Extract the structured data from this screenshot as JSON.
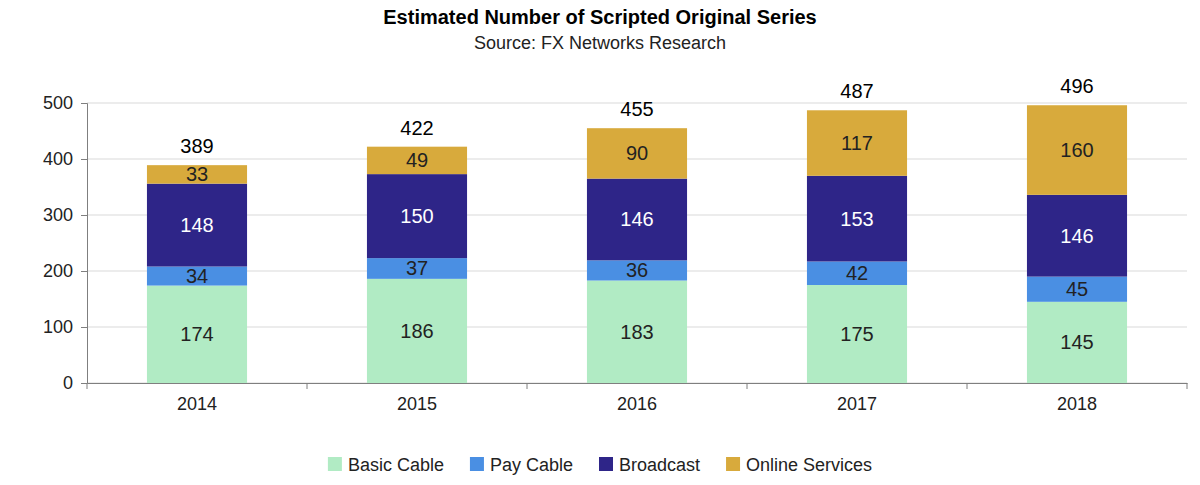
{
  "chart_data": {
    "type": "bar",
    "title": "Estimated Number of Scripted Original Series",
    "subtitle": "Source: FX Networks Research",
    "categories": [
      "2014",
      "2015",
      "2016",
      "2017",
      "2018"
    ],
    "series": [
      {
        "name": "Basic Cable",
        "color": "#b1ebc4",
        "values": [
          174,
          186,
          183,
          175,
          145
        ]
      },
      {
        "name": "Pay Cable",
        "color": "#4a8fe3",
        "values": [
          34,
          37,
          36,
          42,
          45
        ]
      },
      {
        "name": "Broadcast",
        "color": "#2e2588",
        "values": [
          148,
          150,
          146,
          153,
          146
        ]
      },
      {
        "name": "Online Services",
        "color": "#d8aa3c",
        "values": [
          33,
          49,
          90,
          117,
          160
        ]
      }
    ],
    "totals": [
      389,
      422,
      455,
      487,
      496
    ],
    "stacked": true,
    "data_labels": true,
    "legend": "bottom",
    "grid": true,
    "ylim": [
      0,
      500
    ],
    "yticks": [
      0,
      100,
      200,
      300,
      400,
      500
    ]
  }
}
